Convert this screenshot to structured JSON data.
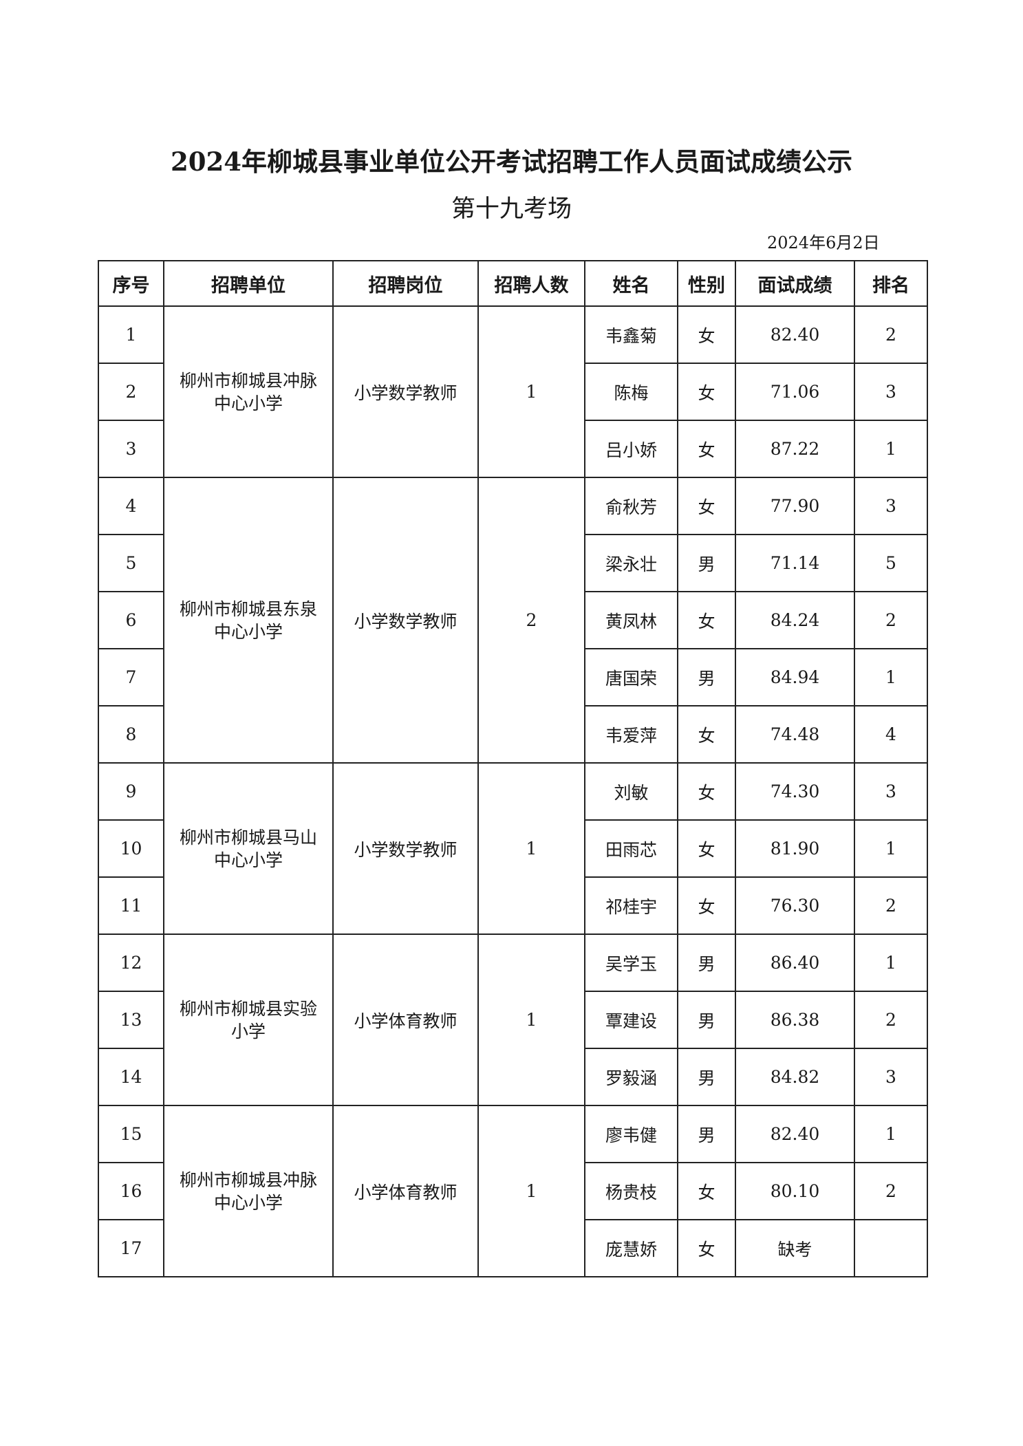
{
  "title": "2024年柳城县事业单位公开考试招聘工作人员面试成绩公示",
  "subtitle": "第十九考场",
  "date": "2024年6月2日",
  "headers": [
    "序号",
    "招聘单位",
    "招聘岗位",
    "招聘人数",
    "姓名",
    "性别",
    "面试成绩",
    "排名"
  ],
  "groups": [
    {
      "unit": "柳州市柳城县冲脉中心小学",
      "post": "小学数学教师",
      "count": "1",
      "rows": [
        {
          "no": "1",
          "name": "韦鑫菊",
          "gender": "女",
          "score": "82.40",
          "rank": "2"
        },
        {
          "no": "2",
          "name": "陈梅",
          "gender": "女",
          "score": "71.06",
          "rank": "3"
        },
        {
          "no": "3",
          "name": "吕小娇",
          "gender": "女",
          "score": "87.22",
          "rank": "1"
        }
      ]
    },
    {
      "unit": "柳州市柳城县东泉中心小学",
      "post": "小学数学教师",
      "count": "2",
      "rows": [
        {
          "no": "4",
          "name": "俞秋芳",
          "gender": "女",
          "score": "77.90",
          "rank": "3"
        },
        {
          "no": "5",
          "name": "梁永壮",
          "gender": "男",
          "score": "71.14",
          "rank": "5"
        },
        {
          "no": "6",
          "name": "黄凤林",
          "gender": "女",
          "score": "84.24",
          "rank": "2"
        },
        {
          "no": "7",
          "name": "唐国荣",
          "gender": "男",
          "score": "84.94",
          "rank": "1"
        },
        {
          "no": "8",
          "name": "韦爱萍",
          "gender": "女",
          "score": "74.48",
          "rank": "4"
        }
      ]
    },
    {
      "unit": "柳州市柳城县马山中心小学",
      "post": "小学数学教师",
      "count": "1",
      "rows": [
        {
          "no": "9",
          "name": "刘敏",
          "gender": "女",
          "score": "74.30",
          "rank": "3"
        },
        {
          "no": "10",
          "name": "田雨芯",
          "gender": "女",
          "score": "81.90",
          "rank": "1"
        },
        {
          "no": "11",
          "name": "祁桂宇",
          "gender": "女",
          "score": "76.30",
          "rank": "2"
        }
      ]
    },
    {
      "unit": "柳州市柳城县实验小学",
      "post": "小学体育教师",
      "count": "1",
      "rows": [
        {
          "no": "12",
          "name": "吴学玉",
          "gender": "男",
          "score": "86.40",
          "rank": "1"
        },
        {
          "no": "13",
          "name": "覃建设",
          "gender": "男",
          "score": "86.38",
          "rank": "2"
        },
        {
          "no": "14",
          "name": "罗毅涵",
          "gender": "男",
          "score": "84.82",
          "rank": "3"
        }
      ]
    },
    {
      "unit": "柳州市柳城县冲脉中心小学",
      "post": "小学体育教师",
      "count": "1",
      "rows": [
        {
          "no": "15",
          "name": "廖韦健",
          "gender": "男",
          "score": "82.40",
          "rank": "1"
        },
        {
          "no": "16",
          "name": "杨贵枝",
          "gender": "女",
          "score": "80.10",
          "rank": "2"
        },
        {
          "no": "17",
          "name": "庞慧娇",
          "gender": "女",
          "score": "缺考",
          "rank": ""
        }
      ]
    }
  ]
}
